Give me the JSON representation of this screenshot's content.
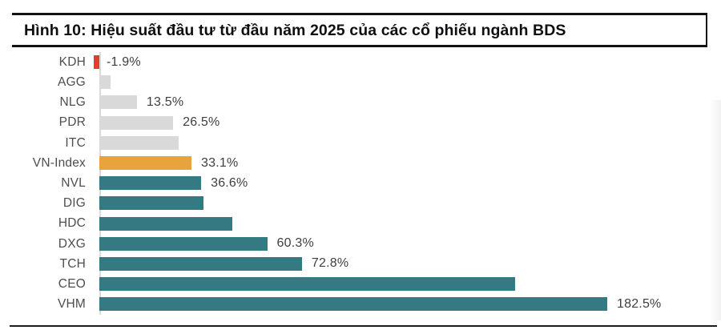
{
  "chart_data": {
    "type": "bar",
    "orientation": "horizontal",
    "title": "Hình 10: Hiệu suất đầu tư từ đầu năm 2025 của các cổ phiếu ngành BDS",
    "value_unit": "%",
    "categories": [
      "KDH",
      "AGG",
      "NLG",
      "PDR",
      "ITC",
      "VN-Index",
      "NVL",
      "DIG",
      "HDC",
      "DXG",
      "TCH",
      "CEO",
      "VHM"
    ],
    "values": [
      -1.9,
      4.0,
      13.5,
      26.5,
      28.5,
      33.1,
      36.6,
      37.4,
      47.8,
      60.3,
      72.8,
      149.5,
      182.5
    ],
    "data_labels": [
      "-1.9%",
      "",
      "13.5%",
      "26.5%",
      "",
      "33.1%",
      "36.6%",
      "",
      "",
      "60.3%",
      "72.8%",
      "",
      "182.5%"
    ],
    "estimated_categories": [
      "AGG",
      "ITC",
      "DIG",
      "HDC",
      "CEO"
    ],
    "bar_colors": [
      "#E53C2E",
      "#D9D9D9",
      "#D9D9D9",
      "#D9D9D9",
      "#D9D9D9",
      "#E8A33D",
      "#357983",
      "#357983",
      "#357983",
      "#357983",
      "#357983",
      "#357983",
      "#357983"
    ],
    "colors": {
      "negative_red": "#E53C2E",
      "peer_gray": "#D9D9D9",
      "vnindex_orange": "#E8A33D",
      "sector_teal": "#357983",
      "axis_line": "#d9d9d9",
      "rule_black": "#131313"
    },
    "xlim": [
      -8,
      215
    ],
    "legend": "none",
    "grid": "none",
    "xlabel": "",
    "ylabel": ""
  }
}
